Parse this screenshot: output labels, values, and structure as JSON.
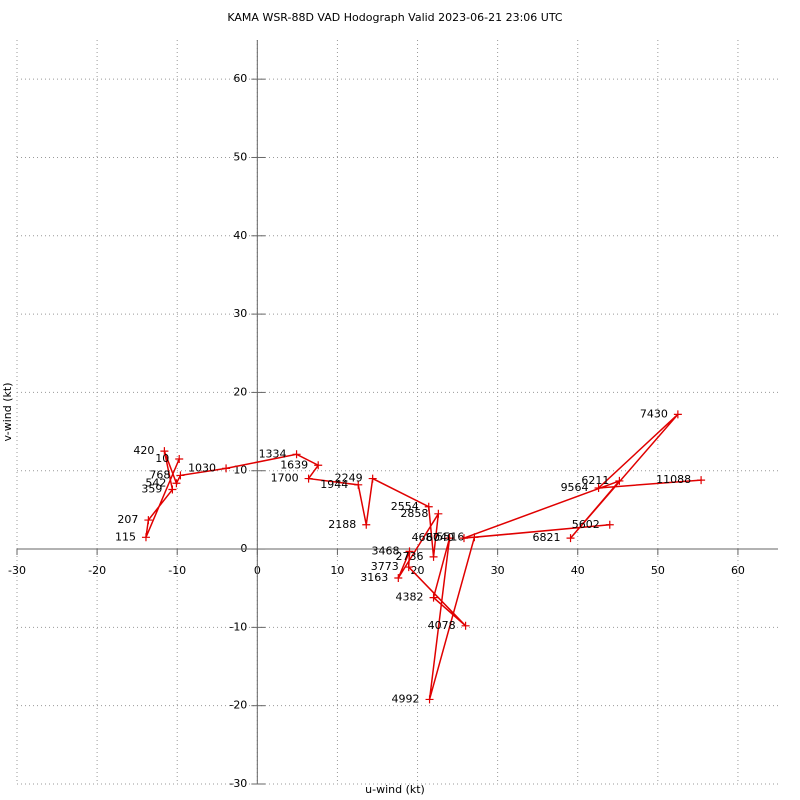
{
  "chart_data": {
    "type": "line",
    "title": "KAMA WSR-88D VAD Hodograph Valid 2023-06-21 23:06 UTC",
    "x_label": "u-wind (kt)",
    "y_label": "v-wind (kt)",
    "xlim": [
      -30,
      65
    ],
    "ylim": [
      -30,
      65
    ],
    "xticks": [
      -30,
      -20,
      -10,
      0,
      10,
      20,
      30,
      40,
      50,
      60
    ],
    "yticks": [
      -30,
      -20,
      -10,
      0,
      10,
      20,
      30,
      40,
      50,
      60
    ],
    "grid": true,
    "color": "#e00000",
    "heights": [
      10,
      115,
      207,
      359,
      420,
      542,
      768,
      1030,
      1334,
      1639,
      1700,
      1944,
      2188,
      2249,
      2554,
      2736,
      2858,
      3163,
      3468,
      3773,
      4078,
      4382,
      4687,
      4992,
      5516,
      5602,
      6040,
      6211,
      6821,
      7430,
      9564,
      11088
    ],
    "x": [
      -9.75,
      -13.9,
      -13.6,
      -10.6,
      -11.6,
      -10.1,
      -9.6,
      -3.9,
      4.9,
      7.6,
      6.4,
      12.6,
      13.6,
      14.4,
      21.4,
      22,
      22.6,
      17.6,
      19,
      18.9,
      26,
      22,
      24,
      21.5,
      27.1,
      44,
      25.8,
      45.2,
      39.1,
      52.5,
      42.6,
      55.4
    ],
    "values": [
      11.5,
      1.5,
      3.7,
      7.6,
      12.5,
      8.4,
      9.4,
      10.3,
      12.1,
      10.7,
      9.0,
      8.2,
      3.1,
      9.0,
      5.4,
      -1,
      4.5,
      -3.7,
      -0.3,
      -2.3,
      -9.8,
      -6.2,
      1.4,
      -19.2,
      1.5,
      3.1,
      1.4,
      8.7,
      1.4,
      17.2,
      7.8,
      8.8
    ]
  }
}
